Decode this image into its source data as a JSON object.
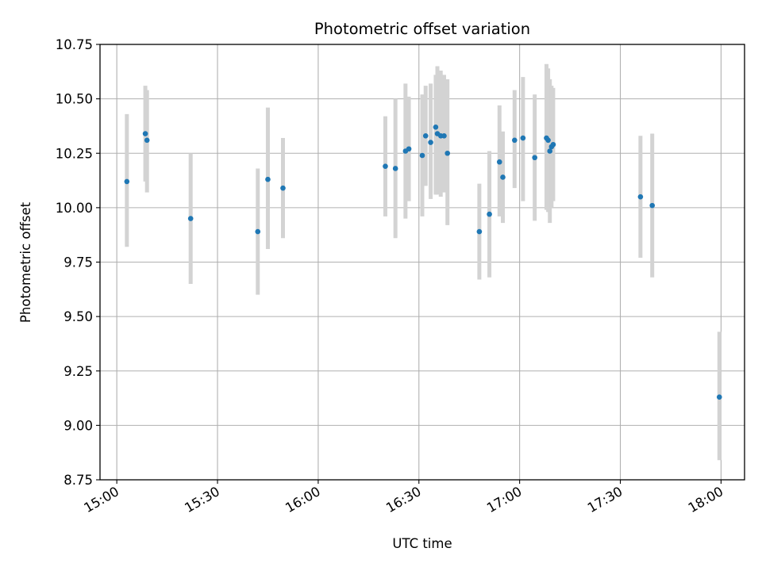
{
  "chart_data": {
    "type": "scatter",
    "title": "Photometric offset variation",
    "xlabel": "UTC time",
    "ylabel": "Photometric offset",
    "x_axis_type": "time",
    "xlim": [
      "14:55",
      "18:07"
    ],
    "ylim": [
      8.75,
      10.75
    ],
    "xticks": [
      "15:00",
      "15:30",
      "16:00",
      "16:30",
      "17:00",
      "17:30",
      "18:00"
    ],
    "yticks": [
      "8.75",
      "9.00",
      "9.25",
      "9.50",
      "9.75",
      "10.00",
      "10.25",
      "10.50",
      "10.75"
    ],
    "grid": true,
    "legend": "none",
    "colors": {
      "marker": "#1f77b4",
      "error_bar": "#d3d3d3"
    },
    "series": [
      {
        "marker": "dot",
        "points": [
          {
            "t": "15:03",
            "y": 10.12,
            "lo": 9.82,
            "hi": 10.43
          },
          {
            "t": "15:08.5",
            "y": 10.34,
            "lo": 10.12,
            "hi": 10.56
          },
          {
            "t": "15:09",
            "y": 10.31,
            "lo": 10.07,
            "hi": 10.54
          },
          {
            "t": "15:22",
            "y": 9.95,
            "lo": 9.65,
            "hi": 10.25
          },
          {
            "t": "15:42",
            "y": 9.89,
            "lo": 9.6,
            "hi": 10.18
          },
          {
            "t": "15:45",
            "y": 10.13,
            "lo": 9.81,
            "hi": 10.46
          },
          {
            "t": "15:49.5",
            "y": 10.09,
            "lo": 9.86,
            "hi": 10.32
          },
          {
            "t": "16:20",
            "y": 10.19,
            "lo": 9.96,
            "hi": 10.42
          },
          {
            "t": "16:23",
            "y": 10.18,
            "lo": 9.86,
            "hi": 10.5
          },
          {
            "t": "16:26",
            "y": 10.26,
            "lo": 9.95,
            "hi": 10.57
          },
          {
            "t": "16:27",
            "y": 10.27,
            "lo": 10.03,
            "hi": 10.51
          },
          {
            "t": "16:31",
            "y": 10.24,
            "lo": 9.96,
            "hi": 10.52
          },
          {
            "t": "16:32",
            "y": 10.33,
            "lo": 10.1,
            "hi": 10.56
          },
          {
            "t": "16:33.5",
            "y": 10.3,
            "lo": 10.04,
            "hi": 10.57
          },
          {
            "t": "16:35",
            "y": 10.37,
            "lo": 10.06,
            "hi": 10.61
          },
          {
            "t": "16:35.5",
            "y": 10.34,
            "lo": 10.06,
            "hi": 10.65
          },
          {
            "t": "16:36.5",
            "y": 10.33,
            "lo": 10.05,
            "hi": 10.63
          },
          {
            "t": "16:37.5",
            "y": 10.33,
            "lo": 10.07,
            "hi": 10.61
          },
          {
            "t": "16:38.5",
            "y": 10.25,
            "lo": 9.92,
            "hi": 10.59
          },
          {
            "t": "16:48",
            "y": 9.89,
            "lo": 9.67,
            "hi": 10.11
          },
          {
            "t": "16:51",
            "y": 9.97,
            "lo": 9.68,
            "hi": 10.26
          },
          {
            "t": "16:54",
            "y": 10.21,
            "lo": 9.96,
            "hi": 10.47
          },
          {
            "t": "16:55",
            "y": 10.14,
            "lo": 9.93,
            "hi": 10.35
          },
          {
            "t": "16:58.5",
            "y": 10.31,
            "lo": 10.09,
            "hi": 10.54
          },
          {
            "t": "17:01",
            "y": 10.32,
            "lo": 10.03,
            "hi": 10.6
          },
          {
            "t": "17:04.5",
            "y": 10.23,
            "lo": 9.94,
            "hi": 10.52
          },
          {
            "t": "17:08",
            "y": 10.32,
            "lo": 9.99,
            "hi": 10.66
          },
          {
            "t": "17:08.5",
            "y": 10.31,
            "lo": 9.98,
            "hi": 10.64
          },
          {
            "t": "17:09",
            "y": 10.26,
            "lo": 9.93,
            "hi": 10.59
          },
          {
            "t": "17:09.5",
            "y": 10.28,
            "lo": 10.0,
            "hi": 10.56
          },
          {
            "t": "17:10",
            "y": 10.29,
            "lo": 10.03,
            "hi": 10.55
          },
          {
            "t": "17:36",
            "y": 10.05,
            "lo": 9.77,
            "hi": 10.33
          },
          {
            "t": "17:39.5",
            "y": 10.01,
            "lo": 9.68,
            "hi": 10.34
          },
          {
            "t": "17:59.5",
            "y": 9.13,
            "lo": 8.84,
            "hi": 9.43
          }
        ]
      }
    ]
  }
}
